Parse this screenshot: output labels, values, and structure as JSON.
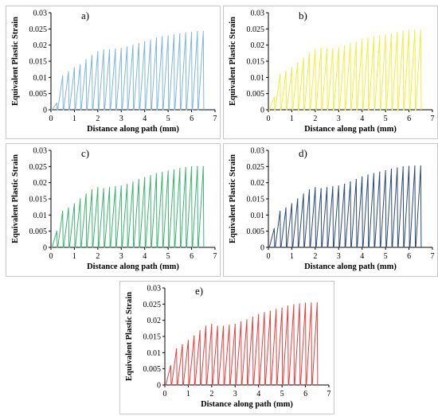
{
  "chart_data": [
    {
      "type": "line",
      "label": "a)",
      "color": "#7fb6e0",
      "xlabel": "Distance along path (mm)",
      "ylabel": "Equivalent Plastic Strain",
      "xlim": [
        0,
        7
      ],
      "ylim": [
        0,
        0.03
      ],
      "xticks": [
        "0",
        "1",
        "2",
        "3",
        "4",
        "5",
        "6",
        "7"
      ],
      "yticks": [
        "0",
        "0.005",
        "0.01",
        "0.015",
        "0.02",
        "0.025",
        "0.03"
      ],
      "x_peaks": [
        0.25,
        0.5,
        0.75,
        1.0,
        1.25,
        1.5,
        1.75,
        2.0,
        2.25,
        2.5,
        2.75,
        3.0,
        3.25,
        3.5,
        3.75,
        4.0,
        4.25,
        4.5,
        4.75,
        5.0,
        5.25,
        5.5,
        5.75,
        6.0,
        6.25,
        6.5
      ],
      "y_peaks": [
        0.002,
        0.0105,
        0.0118,
        0.013,
        0.014,
        0.0155,
        0.0168,
        0.018,
        0.0185,
        0.0186,
        0.0188,
        0.019,
        0.0195,
        0.02,
        0.0205,
        0.021,
        0.0215,
        0.0222,
        0.0226,
        0.0229,
        0.0232,
        0.0235,
        0.0238,
        0.024,
        0.0242,
        0.0242
      ]
    },
    {
      "type": "line",
      "label": "b)",
      "color": "#f2ee3c",
      "xlabel": "Distance along path (mm)",
      "ylabel": "Equivalent Plastic Strain",
      "xlim": [
        0,
        7
      ],
      "ylim": [
        0,
        0.03
      ],
      "xticks": [
        "0",
        "1",
        "2",
        "3",
        "4",
        "5",
        "6",
        "7"
      ],
      "yticks": [
        "0",
        "0.005",
        "0.01",
        "0.015",
        "0.02",
        "0.025",
        "0.03"
      ],
      "x_peaks": [
        0.25,
        0.5,
        0.75,
        1.0,
        1.25,
        1.5,
        1.75,
        2.0,
        2.25,
        2.5,
        2.75,
        3.0,
        3.25,
        3.5,
        3.75,
        4.0,
        4.25,
        4.5,
        4.75,
        5.0,
        5.25,
        5.5,
        5.75,
        6.0,
        6.25,
        6.5
      ],
      "y_peaks": [
        0.004,
        0.011,
        0.012,
        0.013,
        0.0145,
        0.016,
        0.0175,
        0.0188,
        0.019,
        0.0188,
        0.019,
        0.0192,
        0.0198,
        0.0205,
        0.021,
        0.0218,
        0.0222,
        0.0226,
        0.0229,
        0.0232,
        0.0236,
        0.024,
        0.0243,
        0.0246,
        0.0248,
        0.0248
      ]
    },
    {
      "type": "line",
      "label": "c)",
      "color": "#3cb371",
      "xlabel": "Distance along path (mm)",
      "ylabel": "Equivalent Plastic Strain",
      "xlim": [
        0,
        7
      ],
      "ylim": [
        0,
        0.03
      ],
      "xticks": [
        "0",
        "1",
        "2",
        "3",
        "4",
        "5",
        "6",
        "7"
      ],
      "yticks": [
        "0",
        "0.005",
        "0.01",
        "0.015",
        "0.02",
        "0.025",
        "0.03"
      ],
      "x_peaks": [
        0.25,
        0.5,
        0.75,
        1.0,
        1.25,
        1.5,
        1.75,
        2.0,
        2.25,
        2.5,
        2.75,
        3.0,
        3.25,
        3.5,
        3.75,
        4.0,
        4.25,
        4.5,
        4.75,
        5.0,
        5.25,
        5.5,
        5.75,
        6.0,
        6.25,
        6.5
      ],
      "y_peaks": [
        0.005,
        0.0112,
        0.0122,
        0.0135,
        0.015,
        0.0165,
        0.0178,
        0.0185,
        0.0182,
        0.0185,
        0.0188,
        0.019,
        0.0195,
        0.0202,
        0.021,
        0.0216,
        0.0222,
        0.0228,
        0.0232,
        0.0236,
        0.024,
        0.0244,
        0.0247,
        0.0249,
        0.025,
        0.025
      ]
    },
    {
      "type": "line",
      "label": "d)",
      "color": "#2e4a7d",
      "xlabel": "Distance along path (mm)",
      "ylabel": "Equivalent Plastic Strain",
      "xlim": [
        0,
        7
      ],
      "ylim": [
        0,
        0.03
      ],
      "xticks": [
        "0",
        "1",
        "2",
        "3",
        "4",
        "5",
        "6",
        "7"
      ],
      "yticks": [
        "0",
        "0.005",
        "0.01",
        "0.015",
        "0.02",
        "0.025",
        "0.03"
      ],
      "x_peaks": [
        0.25,
        0.5,
        0.75,
        1.0,
        1.25,
        1.5,
        1.75,
        2.0,
        2.25,
        2.5,
        2.75,
        3.0,
        3.25,
        3.5,
        3.75,
        4.0,
        4.25,
        4.5,
        4.75,
        5.0,
        5.25,
        5.5,
        5.75,
        6.0,
        6.25,
        6.5
      ],
      "y_peaks": [
        0.0058,
        0.0112,
        0.0122,
        0.0135,
        0.015,
        0.0165,
        0.0178,
        0.0185,
        0.0182,
        0.0185,
        0.0188,
        0.019,
        0.0196,
        0.0203,
        0.021,
        0.0218,
        0.0224,
        0.0228,
        0.0233,
        0.0237,
        0.0242,
        0.0246,
        0.0249,
        0.0251,
        0.0252,
        0.0252
      ]
    },
    {
      "type": "line",
      "label": "e)",
      "color": "#e8403c",
      "xlabel": "Distance along path (mm)",
      "ylabel": "Equivalent Plastic Strain",
      "xlim": [
        0,
        7
      ],
      "ylim": [
        0,
        0.03
      ],
      "xticks": [
        "0",
        "1",
        "2",
        "3",
        "4",
        "5",
        "6",
        "7"
      ],
      "yticks": [
        "0",
        "0.005",
        "0.01",
        "0.015",
        "0.02",
        "0.025",
        "0.03"
      ],
      "x_peaks": [
        0.25,
        0.5,
        0.75,
        1.0,
        1.25,
        1.5,
        1.75,
        2.0,
        2.25,
        2.5,
        2.75,
        3.0,
        3.25,
        3.5,
        3.75,
        4.0,
        4.25,
        4.5,
        4.75,
        5.0,
        5.25,
        5.5,
        5.75,
        6.0,
        6.25,
        6.5
      ],
      "y_peaks": [
        0.006,
        0.0112,
        0.0125,
        0.0138,
        0.0152,
        0.0168,
        0.0182,
        0.0188,
        0.0182,
        0.0182,
        0.0185,
        0.0188,
        0.0195,
        0.0202,
        0.021,
        0.0218,
        0.0224,
        0.0228,
        0.0234,
        0.0238,
        0.0244,
        0.0248,
        0.0251,
        0.0253,
        0.0254,
        0.0254
      ]
    }
  ]
}
